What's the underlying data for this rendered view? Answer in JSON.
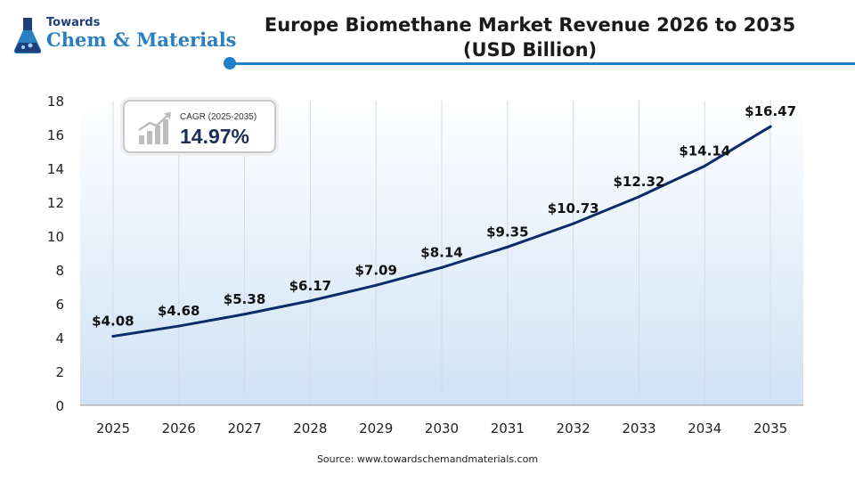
{
  "logo": {
    "line1": "Towards",
    "line2": "Chem & Materials"
  },
  "header": {
    "title_line1": "Europe Biomethane Market Revenue 2026 to 2035",
    "title_line2": "(USD Billion)",
    "accent_color": "#1f7fc9"
  },
  "cagr": {
    "label": "CAGR (2025-2035)",
    "value": "14.97%",
    "icon": "growth-bars-icon"
  },
  "chart_data": {
    "type": "line",
    "categories": [
      "2025",
      "2026",
      "2027",
      "2028",
      "2029",
      "2030",
      "2031",
      "2032",
      "2033",
      "2034",
      "2035"
    ],
    "series": [
      {
        "values": [
          4.08,
          4.68,
          5.38,
          6.17,
          7.09,
          8.14,
          9.35,
          10.73,
          12.32,
          14.14,
          16.47
        ],
        "labels": [
          "$4.08",
          "$4.68",
          "$5.38",
          "$6.17",
          "$7.09",
          "$8.14",
          "$9.35",
          "$10.73",
          "$12.32",
          "$14.14",
          "$16.47"
        ],
        "color": "#0d2b6b"
      }
    ],
    "title": "Europe Biomethane Market Revenue 2026 to 2035 (USD Billion)",
    "xlabel": "",
    "ylabel": "",
    "ylim": [
      0,
      18
    ],
    "yticks": [
      0,
      2,
      4,
      6,
      8,
      10,
      12,
      14,
      16,
      18
    ],
    "grid": "vertical",
    "background_gradient": [
      "#ffffff",
      "#cfe2f5"
    ]
  },
  "footer": {
    "source": "Source: www.towardschemandmaterials.com"
  }
}
